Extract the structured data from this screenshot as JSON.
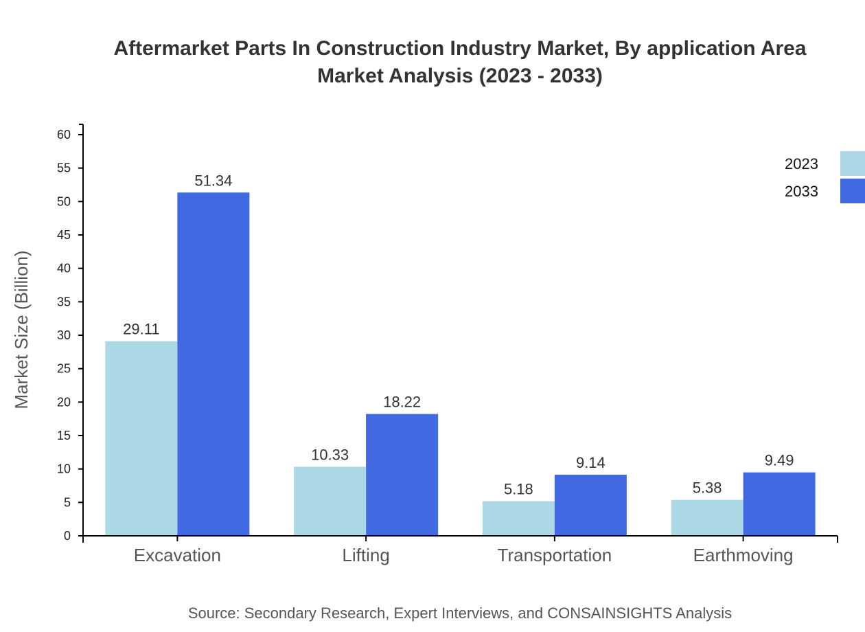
{
  "chart_data": {
    "type": "bar",
    "title": "Aftermarket Parts In Construction Industry Market, By application Area",
    "subtitle": "Market Analysis (2023 - 2033)",
    "ylabel": "Market Size (Billion)",
    "xlabel": "",
    "ylim": [
      0,
      60
    ],
    "yticks": [
      0,
      5,
      10,
      15,
      20,
      25,
      30,
      35,
      40,
      45,
      50,
      55,
      60
    ],
    "categories": [
      "Excavation",
      "Lifting",
      "Transportation",
      "Earthmoving"
    ],
    "series": [
      {
        "name": "2023",
        "color": "#add8e6",
        "values": [
          29.11,
          10.33,
          5.18,
          5.38
        ]
      },
      {
        "name": "2033",
        "color": "#4169e1",
        "values": [
          51.34,
          18.22,
          9.14,
          9.49
        ]
      }
    ],
    "legend": "top-right",
    "grid": false,
    "source": "Source: Secondary Research, Expert Interviews, and CONSAINSIGHTS Analysis"
  }
}
